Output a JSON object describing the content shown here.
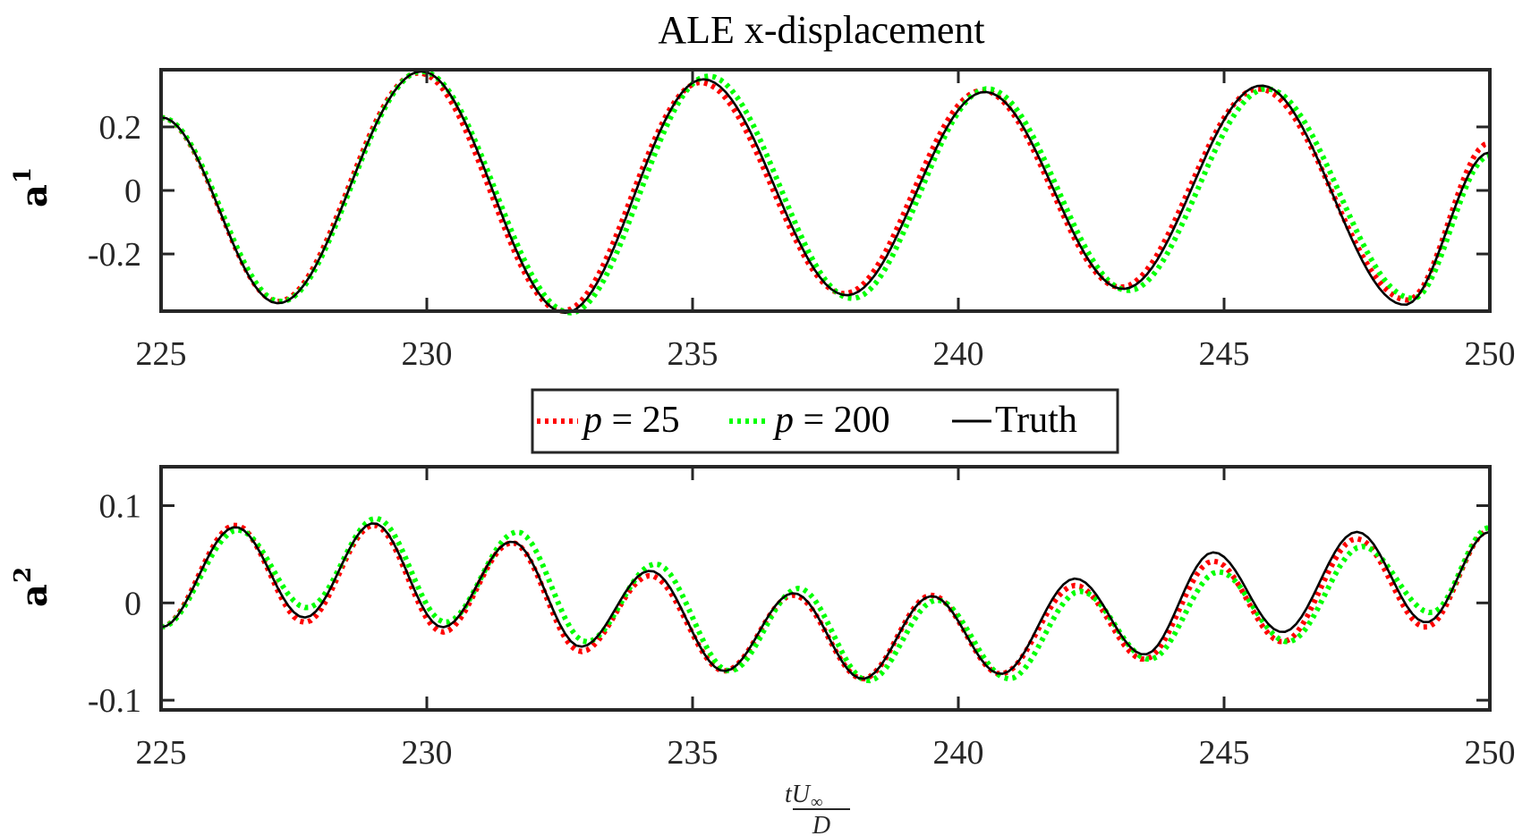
{
  "chart_data": [
    {
      "type": "line",
      "title": "ALE x-displacement",
      "ylabel": "a",
      "ylabel_superscript": "1",
      "xlim": [
        225,
        250
      ],
      "ylim": [
        -0.38,
        0.38
      ],
      "xticks": [
        225,
        230,
        235,
        240,
        245,
        250
      ],
      "xtick_labels": [
        "225",
        "230",
        "235",
        "240",
        "245",
        "250"
      ],
      "yticks": [
        -0.2,
        0,
        0.2
      ],
      "ytick_labels": [
        "-0.2",
        "0",
        "0.2"
      ],
      "grid": false,
      "series": [
        {
          "name": "Truth",
          "color": "#000000",
          "style": "solid",
          "x": [
            225.0,
            227.2,
            229.9,
            232.6,
            235.2,
            237.9,
            240.5,
            243.1,
            245.7,
            248.4,
            250.0
          ],
          "y": [
            0.23,
            -0.355,
            0.375,
            -0.385,
            0.35,
            -0.33,
            0.31,
            -0.31,
            0.33,
            -0.36,
            0.12
          ]
        },
        {
          "name": "p = 25",
          "color": "#ff0000",
          "style": "dotted",
          "x": [
            225.0,
            227.2,
            229.85,
            232.55,
            235.15,
            237.85,
            240.45,
            243.05,
            245.65,
            248.45,
            250.0
          ],
          "y": [
            0.23,
            -0.35,
            0.37,
            -0.38,
            0.34,
            -0.325,
            0.315,
            -0.305,
            0.32,
            -0.345,
            0.15
          ]
        },
        {
          "name": "p = 200",
          "color": "#00ff00",
          "style": "dotted",
          "x": [
            225.0,
            227.25,
            229.9,
            232.7,
            235.3,
            238.0,
            240.55,
            243.2,
            245.8,
            248.55,
            250.0
          ],
          "y": [
            0.23,
            -0.35,
            0.375,
            -0.385,
            0.36,
            -0.34,
            0.32,
            -0.315,
            0.32,
            -0.34,
            0.11
          ]
        }
      ]
    },
    {
      "type": "line",
      "title": "",
      "xlabel": "tU∞/D",
      "xlabel_numerator": "tU",
      "xlabel_sub": "∞",
      "xlabel_denominator": "D",
      "ylabel": "a",
      "ylabel_superscript": "2",
      "xlim": [
        225,
        250
      ],
      "ylim": [
        -0.11,
        0.14
      ],
      "xticks": [
        225,
        230,
        235,
        240,
        245,
        250
      ],
      "xtick_labels": [
        "225",
        "230",
        "235",
        "240",
        "245",
        "250"
      ],
      "yticks": [
        -0.1,
        0,
        0.1
      ],
      "ytick_labels": [
        "-0.1",
        "0",
        "0.1"
      ],
      "grid": false,
      "series": [
        {
          "name": "Truth",
          "color": "#000000",
          "style": "solid",
          "x": [
            225.0,
            226.4,
            227.7,
            229.0,
            230.3,
            231.6,
            232.9,
            234.2,
            235.6,
            236.9,
            238.2,
            239.5,
            240.8,
            242.2,
            243.5,
            244.8,
            246.1,
            247.5,
            248.8,
            250.0
          ],
          "y": [
            -0.025,
            0.078,
            -0.015,
            0.082,
            -0.025,
            0.063,
            -0.045,
            0.033,
            -0.07,
            0.01,
            -0.078,
            0.007,
            -0.073,
            0.025,
            -0.053,
            0.052,
            -0.03,
            0.073,
            -0.02,
            0.073
          ]
        },
        {
          "name": "p = 25",
          "color": "#ff0000",
          "style": "dotted",
          "x": [
            225.0,
            226.4,
            227.7,
            229.0,
            230.3,
            231.6,
            232.9,
            234.2,
            235.6,
            236.9,
            238.2,
            239.5,
            240.8,
            242.2,
            243.5,
            244.8,
            246.1,
            247.5,
            248.8,
            250.0
          ],
          "y": [
            -0.025,
            0.08,
            -0.02,
            0.08,
            -0.03,
            0.062,
            -0.05,
            0.028,
            -0.07,
            0.008,
            -0.078,
            0.008,
            -0.073,
            0.018,
            -0.058,
            0.043,
            -0.04,
            0.066,
            -0.025,
            0.075
          ]
        },
        {
          "name": "p = 200",
          "color": "#00ff00",
          "style": "dotted",
          "x": [
            225.0,
            226.45,
            227.75,
            229.05,
            230.35,
            231.7,
            233.0,
            234.3,
            235.7,
            237.0,
            238.3,
            239.6,
            240.95,
            242.3,
            243.6,
            244.9,
            246.2,
            247.6,
            248.9,
            250.0
          ],
          "y": [
            -0.025,
            0.075,
            -0.005,
            0.087,
            -0.02,
            0.073,
            -0.04,
            0.04,
            -0.07,
            0.015,
            -0.08,
            0.003,
            -0.078,
            0.012,
            -0.058,
            0.032,
            -0.04,
            0.058,
            -0.01,
            0.078
          ]
        }
      ]
    }
  ],
  "legend": {
    "placement": "between-panels",
    "entries": [
      {
        "italic": "p",
        "rest": " = 25",
        "color": "#ff0000",
        "style": "dotted"
      },
      {
        "italic": "p",
        "rest": " = 200",
        "color": "#00ff00",
        "style": "dotted"
      },
      {
        "italic": "",
        "rest": "Truth",
        "color": "#000000",
        "style": "solid"
      }
    ]
  }
}
